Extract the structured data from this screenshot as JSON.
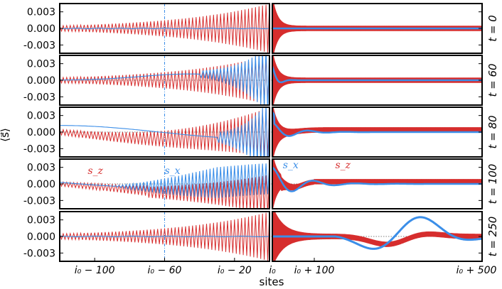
{
  "chart_data": {
    "type": "line",
    "description_axes": {
      "ylabel": "⟨s⃗⟩",
      "xlabel": "sites",
      "y_ticks": [
        "0.003",
        "0.000",
        "-0.003"
      ],
      "ylim": [
        -0.0045,
        0.0045
      ],
      "x_ticks_left": [
        "i₀ − 100",
        "i₀ − 60",
        "i₀ − 20"
      ],
      "x_tick_split": "i₀",
      "x_ticks_right": [
        "i₀ + 100",
        "i₀ + 500"
      ],
      "left_xlim": [
        -120,
        0
      ],
      "right_xlim": [
        0,
        500
      ]
    },
    "series": [
      {
        "name": "s_z",
        "label": "s_z",
        "color": "#d62d2d"
      },
      {
        "name": "s_x",
        "label": "s_x",
        "color": "#3b8ee8"
      }
    ],
    "panels": [
      {
        "time_label": "t = 0",
        "t": 0
      },
      {
        "time_label": "t = 60",
        "t": 60
      },
      {
        "time_label": "t = 80",
        "t": 80
      },
      {
        "time_label": "t = 100",
        "t": 100,
        "annotations": {
          "left_sz": "s_z",
          "left_sx": "s_x",
          "right_sx": "s_x",
          "right_sz": "s_z"
        }
      },
      {
        "time_label": "t = 250",
        "t": 250
      }
    ]
  }
}
